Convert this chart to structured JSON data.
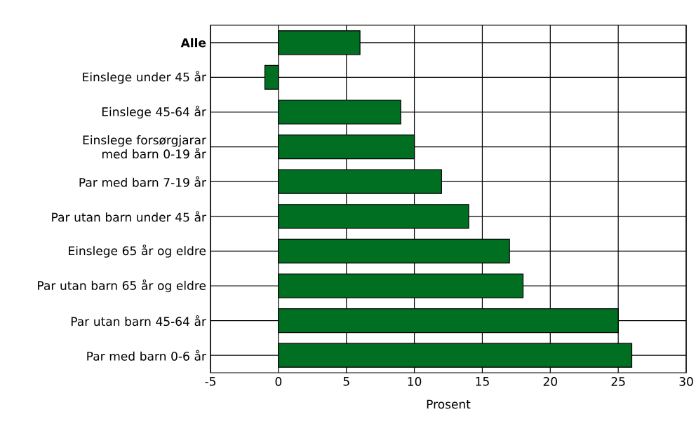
{
  "chart_data": {
    "type": "bar",
    "orientation": "horizontal",
    "xlabel": "Prosent",
    "categories": [
      "**Alle**",
      "Einslege under 45 år",
      "Einslege 45-64  år",
      "Einslege forsørgjarar med barn 0-19 år",
      "Par med barn 7-19 år",
      "Par utan barn under 45 år",
      "Einslege 65 år og eldre",
      "Par utan barn 65 år og eldre",
      "Par utan barn 45-64 år",
      "Par med barn 0-6 år"
    ],
    "values": [
      6,
      -1,
      9,
      10,
      12,
      14,
      17,
      18,
      25,
      26
    ],
    "color": "#006f22",
    "xlim": [
      -5,
      30
    ],
    "xticks": [
      -5,
      0,
      5,
      10,
      15,
      20,
      25,
      30
    ],
    "grid": true
  }
}
